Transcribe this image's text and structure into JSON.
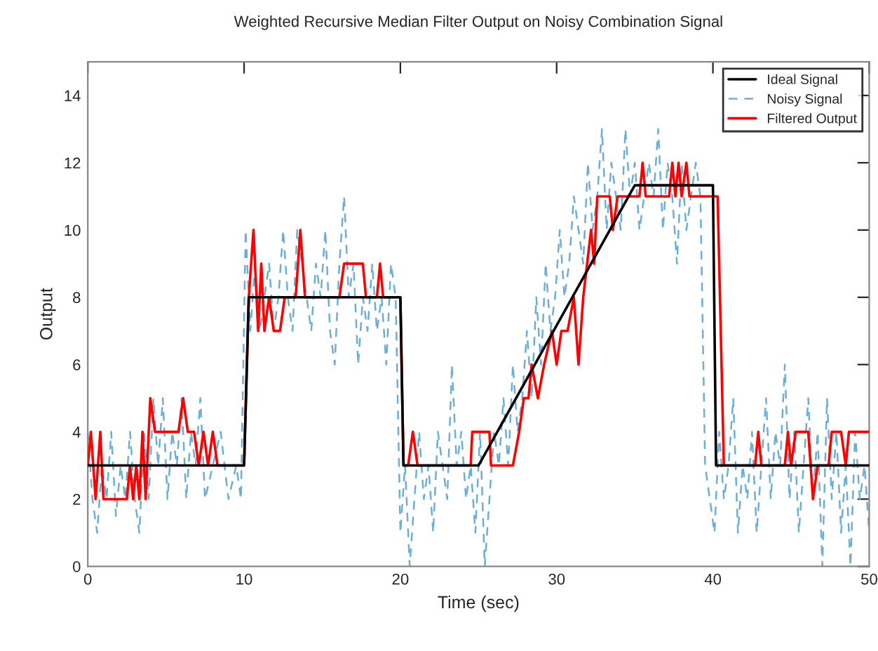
{
  "chart_data": {
    "type": "line",
    "title": "Weighted Recursive Median Filter Output on Noisy Combination Signal",
    "xlabel": "Time (sec)",
    "ylabel": "Output",
    "xlim": [
      0,
      50
    ],
    "ylim": [
      0,
      15
    ],
    "xticks": [
      0,
      10,
      20,
      30,
      40,
      50
    ],
    "yticks": [
      0,
      2,
      4,
      6,
      8,
      10,
      12,
      14
    ],
    "grid": false,
    "legend": "top right",
    "series": [
      {
        "name": "Ideal Signal",
        "color": "#000000",
        "line_style": "solid",
        "x": [
          0,
          10,
          10.3,
          20,
          20.2,
          25,
          35,
          40,
          40.2,
          50
        ],
        "values": [
          3,
          3,
          8,
          8,
          3,
          3,
          11.33,
          11.33,
          3,
          3
        ]
      },
      {
        "name": "Noisy Signal",
        "color": "#6baed6",
        "line_style": "dashed",
        "x": [
          0,
          0.3,
          0.6,
          0.9,
          1.2,
          1.5,
          1.8,
          2.1,
          2.4,
          2.7,
          3.0,
          3.3,
          3.6,
          3.9,
          4.2,
          4.5,
          4.8,
          5.1,
          5.4,
          5.7,
          6.0,
          6.3,
          6.6,
          6.9,
          7.2,
          7.5,
          8.0,
          8.5,
          9.0,
          9.5,
          9.8,
          10.1,
          10.4,
          10.7,
          11.0,
          11.3,
          11.6,
          11.9,
          12.2,
          12.5,
          12.8,
          13.1,
          13.4,
          13.7,
          14.0,
          14.3,
          14.6,
          14.9,
          15.2,
          15.5,
          15.8,
          16.1,
          16.4,
          16.7,
          17.0,
          17.3,
          17.6,
          17.9,
          18.2,
          18.5,
          18.8,
          19.1,
          19.4,
          19.7,
          20.0,
          20.3,
          20.6,
          20.9,
          21.2,
          21.5,
          21.8,
          22.1,
          22.4,
          22.7,
          23.0,
          23.3,
          23.6,
          23.9,
          24.2,
          24.5,
          24.8,
          25.1,
          25.4,
          25.7,
          26.0,
          26.3,
          26.6,
          26.9,
          27.2,
          27.5,
          27.8,
          28.1,
          28.4,
          28.7,
          29.0,
          29.3,
          29.6,
          29.9,
          30.2,
          30.5,
          30.8,
          31.1,
          31.4,
          31.7,
          32.0,
          32.3,
          32.6,
          32.9,
          33.2,
          33.5,
          33.8,
          34.1,
          34.4,
          34.7,
          35.0,
          35.3,
          35.6,
          35.9,
          36.2,
          36.5,
          36.8,
          37.1,
          37.4,
          37.7,
          38.0,
          38.3,
          38.6,
          38.9,
          39.2,
          39.5,
          39.8,
          40.1,
          40.4,
          40.7,
          41.0,
          41.3,
          41.6,
          41.9,
          42.2,
          42.5,
          42.8,
          43.1,
          43.4,
          43.7,
          44.0,
          44.3,
          44.6,
          44.9,
          45.2,
          45.5,
          45.8,
          46.1,
          46.4,
          46.7,
          47.0,
          47.3,
          47.6,
          47.9,
          48.2,
          48.5,
          48.8,
          49.1,
          49.4,
          49.7,
          50.0
        ],
        "values": [
          4,
          2,
          1,
          3,
          2,
          4,
          1.5,
          3,
          2,
          4,
          2,
          1,
          4,
          2,
          5,
          3,
          5,
          2,
          4,
          3,
          5,
          2,
          4,
          3,
          5,
          2,
          3,
          4,
          2,
          3,
          2,
          10,
          7,
          9,
          7,
          8,
          9,
          7,
          8,
          10,
          8,
          7,
          10,
          9,
          8,
          7,
          9,
          8,
          10,
          7,
          6,
          9,
          11,
          8,
          9,
          6,
          8,
          7,
          9,
          7,
          8,
          6,
          9,
          8,
          1,
          3,
          0,
          2,
          4,
          2,
          3,
          1,
          4,
          3,
          2,
          6,
          3,
          4,
          2,
          3,
          1,
          4,
          0,
          2,
          4,
          3,
          5,
          3,
          6,
          4,
          5,
          7,
          5,
          8,
          6,
          9,
          7,
          8,
          10,
          8,
          9,
          11,
          10,
          9,
          12,
          10,
          11,
          13,
          10,
          12,
          11,
          10,
          13,
          11,
          12,
          10,
          11,
          12,
          11,
          13,
          10,
          12,
          11,
          9,
          12,
          10,
          11,
          12,
          11,
          3,
          2,
          1,
          4,
          2,
          3,
          5,
          1,
          3,
          2,
          4,
          1,
          3,
          5,
          2,
          4,
          3,
          6,
          2,
          4,
          1,
          3,
          5,
          2,
          4,
          0,
          5,
          2,
          4,
          1,
          3,
          0,
          4,
          2,
          3,
          1
        ]
      },
      {
        "name": "Filtered Output",
        "color": "#ff0000",
        "line_style": "solid",
        "x": [
          0,
          0.2,
          0.5,
          0.8,
          1.0,
          2.5,
          2.7,
          2.9,
          3.1,
          3.3,
          3.5,
          3.7,
          4.0,
          4.3,
          5.8,
          6.1,
          6.4,
          6.8,
          7.1,
          7.4,
          7.7,
          8.0,
          8.3,
          10.0,
          10.3,
          10.6,
          10.9,
          11.1,
          11.3,
          11.6,
          11.9,
          12.3,
          12.6,
          13.3,
          13.6,
          13.9,
          16.1,
          16.4,
          17.6,
          17.8,
          18.5,
          18.7,
          18.9,
          20.0,
          20.2,
          20.5,
          20.8,
          21.1,
          24.5,
          24.6,
          25.7,
          25.8,
          27.2,
          27.6,
          27.9,
          28.2,
          28.4,
          28.8,
          29.2,
          29.7,
          30.0,
          30.3,
          30.7,
          31.1,
          31.4,
          31.7,
          32.2,
          32.4,
          32.6,
          33.4,
          33.6,
          33.9,
          35.3,
          35.5,
          35.7,
          37.2,
          37.4,
          37.6,
          37.8,
          38.0,
          38.3,
          38.5,
          40.3,
          40.7,
          42.7,
          42.9,
          43.1,
          44.6,
          44.8,
          45.0,
          45.3,
          46.1,
          46.4,
          46.7,
          47.4,
          47.6,
          48.2,
          48.5,
          48.7,
          50.0
        ],
        "values": [
          3,
          4,
          2,
          4,
          2,
          2,
          3,
          2,
          3,
          2,
          4,
          2,
          5,
          4,
          4,
          5,
          4,
          4,
          3,
          4,
          3,
          4,
          3,
          3,
          8,
          10,
          7,
          9,
          7,
          8,
          7,
          7,
          8,
          8,
          10,
          8,
          8,
          9,
          9,
          8,
          8,
          9,
          8,
          8,
          3,
          3,
          4,
          3,
          3,
          4,
          4,
          3,
          3,
          4,
          5,
          5,
          6,
          5,
          6,
          7,
          6,
          7,
          7,
          8,
          6,
          8,
          10,
          9,
          11,
          11,
          10,
          11,
          11,
          12,
          11,
          11,
          12,
          11,
          12,
          11,
          12,
          11,
          11,
          3,
          3,
          4,
          3,
          3,
          4,
          3,
          4,
          4,
          2,
          3,
          3,
          4,
          4,
          3,
          4,
          4
        ]
      }
    ]
  }
}
